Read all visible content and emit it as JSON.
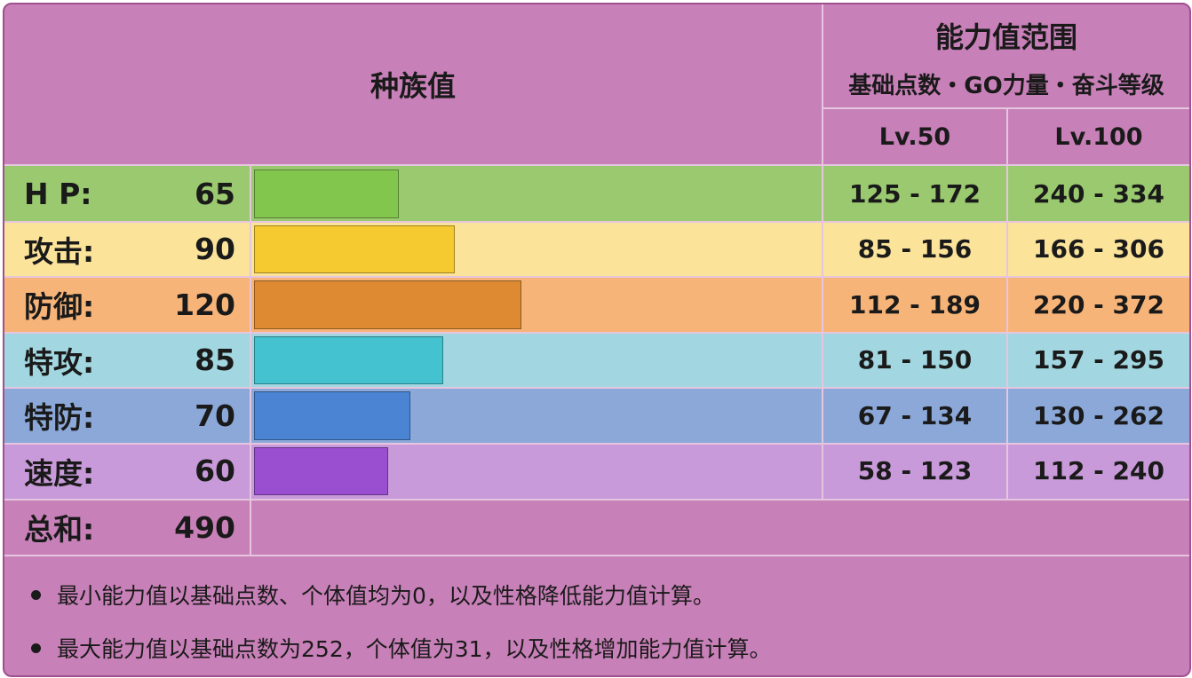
{
  "header": {
    "base_stats_title": "种族值",
    "range_title": "能力值范围",
    "range_subtitle": "基础点数・GO力量・奋斗等级",
    "level_50": "Lv.50",
    "level_100": "Lv.100"
  },
  "stats": [
    {
      "label": "H P:",
      "value": 65,
      "fraction": 0.2549,
      "lv50": "125 - 172",
      "lv100": "240 - 334",
      "row_color": "#9ac96f",
      "bar_color": "#82c64e"
    },
    {
      "label": "攻击:",
      "value": 90,
      "fraction": 0.3529,
      "lv50": "85 - 156",
      "lv100": "166 - 306",
      "row_color": "#fbe39a",
      "bar_color": "#f5c930"
    },
    {
      "label": "防御:",
      "value": 120,
      "fraction": 0.4706,
      "lv50": "112 - 189",
      "lv100": "220 - 372",
      "row_color": "#f7b479",
      "bar_color": "#dd8a32"
    },
    {
      "label": "特攻:",
      "value": 85,
      "fraction": 0.3333,
      "lv50": "81 - 150",
      "lv100": "157 - 295",
      "row_color": "#a2d7e1",
      "bar_color": "#44c2d0"
    },
    {
      "label": "特防:",
      "value": 70,
      "fraction": 0.2745,
      "lv50": "67 - 134",
      "lv100": "130 - 262",
      "row_color": "#8ba8d8",
      "bar_color": "#4a84d2"
    },
    {
      "label": "速度:",
      "value": 60,
      "fraction": 0.2353,
      "lv50": "58 - 123",
      "lv100": "112 - 240",
      "row_color": "#c89ad9",
      "bar_color": "#9a4fd0"
    }
  ],
  "total": {
    "label": "总和:",
    "value": 490
  },
  "notes": [
    "最小能力值以基础点数、个体值均为0，以及性格降低能力值计算。",
    "最大能力值以基础点数为252，个体值为31，以及性格增加能力值计算。"
  ],
  "colors": {
    "frame": "#c880b8",
    "border": "#a0508f",
    "divider": "#e6c6df"
  }
}
